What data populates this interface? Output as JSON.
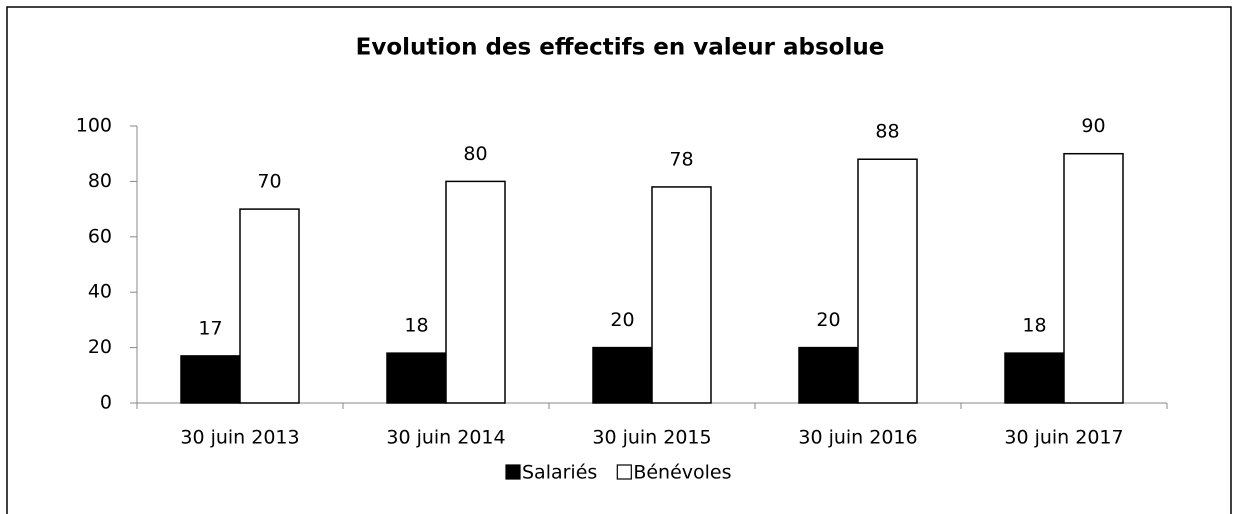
{
  "chart_data": {
    "type": "bar",
    "title": "Evolution des effectifs en valeur absolue",
    "categories": [
      "30 juin 2013",
      "30 juin 2014",
      "30 juin 2015",
      "30 juin 2016",
      "30 juin 2017"
    ],
    "series": [
      {
        "name": "Salariés",
        "color": "#000000",
        "values": [
          17,
          18,
          20,
          20,
          18
        ]
      },
      {
        "name": "Bénévoles",
        "color": "#ffffff",
        "values": [
          70,
          80,
          78,
          88,
          90
        ]
      }
    ],
    "edgecolor": "#000000",
    "ylim": [
      0,
      100
    ],
    "yticks": [
      0,
      20,
      40,
      60,
      80,
      100
    ],
    "grid": false,
    "legend": "bottom"
  }
}
